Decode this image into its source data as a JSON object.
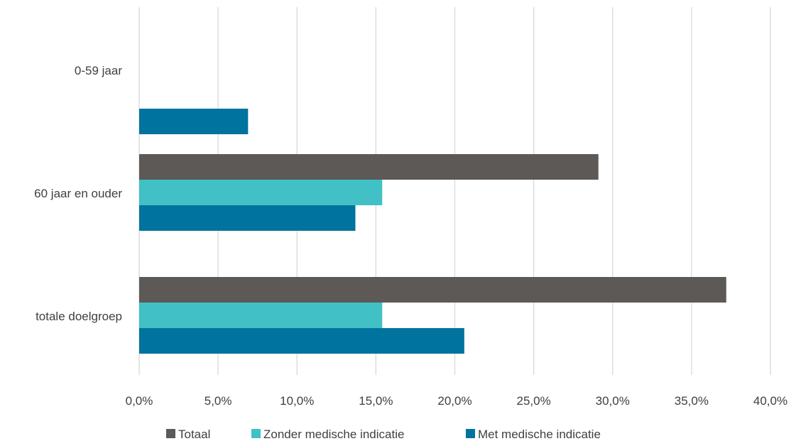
{
  "chart_data": {
    "type": "bar",
    "orientation": "horizontal",
    "title": "",
    "xlabel": "",
    "ylabel": "",
    "categories": [
      "0-59 jaar",
      "60 jaar en ouder",
      "totale doelgroep"
    ],
    "series": [
      {
        "name": "Totaal",
        "color": "#5c5957",
        "values": [
          null,
          29.1,
          37.2
        ]
      },
      {
        "name": "Zonder medische indicatie",
        "color": "#41c1c5",
        "values": [
          null,
          15.4,
          15.4
        ]
      },
      {
        "name": "Met medische indicatie",
        "color": "#00739e",
        "values": [
          6.9,
          13.7,
          20.6
        ]
      }
    ],
    "xlim": [
      0,
      40
    ],
    "x_ticks": [
      "0,0%",
      "5,0%",
      "10,0%",
      "15,0%",
      "20,0%",
      "25,0%",
      "30,0%",
      "35,0%",
      "40,0%"
    ],
    "grid": true,
    "legend_position": "bottom"
  }
}
